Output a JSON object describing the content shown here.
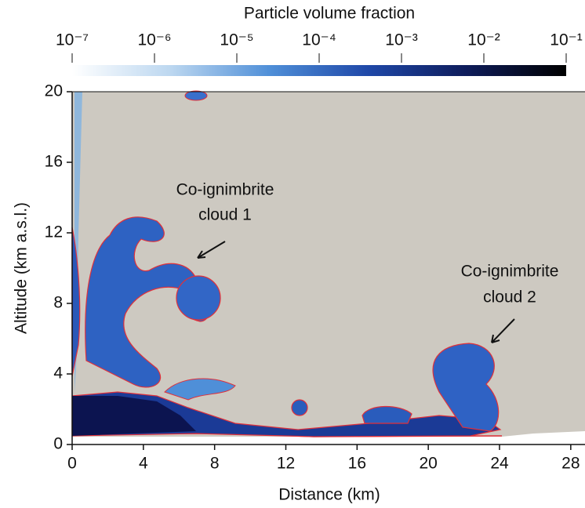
{
  "chart_data": {
    "type": "field",
    "colorbar": {
      "title": "Particle volume fraction",
      "scale": "log",
      "lim": [
        1e-07,
        0.1
      ],
      "ticks": [
        {
          "value": 1e-07,
          "label": "10⁻⁷"
        },
        {
          "value": 1e-06,
          "label": "10⁻⁶"
        },
        {
          "value": 1e-05,
          "label": "10⁻⁵"
        },
        {
          "value": 0.0001,
          "label": "10⁻⁴"
        },
        {
          "value": 0.001,
          "label": "10⁻³"
        },
        {
          "value": 0.01,
          "label": "10⁻²"
        },
        {
          "value": 0.1,
          "label": "10⁻¹"
        }
      ]
    },
    "xlabel": "Distance (km)",
    "ylabel": "Altitude (km a.s.l.)",
    "xlim": [
      0,
      28.8
    ],
    "xticks": [
      0,
      4,
      8,
      12,
      16,
      20,
      24,
      28
    ],
    "ylim": [
      0,
      20
    ],
    "yticks": [
      0,
      4,
      8,
      12,
      16,
      20
    ],
    "annotations": [
      [
        "Co-ignimbrite",
        "cloud 1"
      ],
      [
        "Co-ignimbrite",
        "cloud 2"
      ]
    ]
  }
}
